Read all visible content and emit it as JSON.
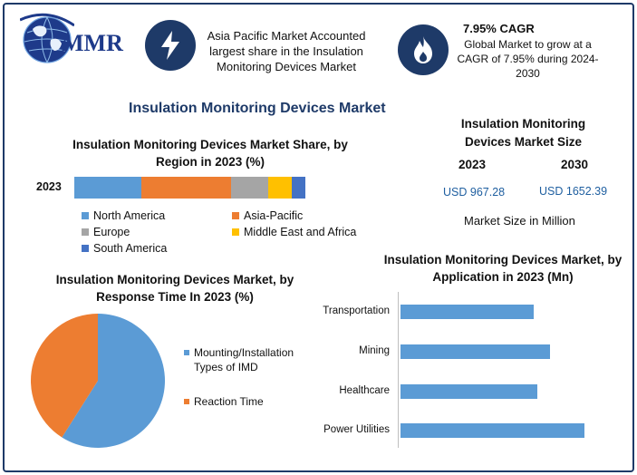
{
  "colors": {
    "primary_dark": "#1e3a68",
    "north_america": "#5b9bd5",
    "asia_pacific": "#ed7d31",
    "europe": "#a5a5a5",
    "middle_east_africa": "#ffc000",
    "south_america": "#4472c4",
    "value_blue": "#1f5fa0"
  },
  "header": {
    "logo_text": "MMR",
    "box1": {
      "icon": "lightning-bolt-icon",
      "text": "Asia Pacific Market Accounted largest share in the Insulation Monitoring Devices Market"
    },
    "box2": {
      "icon": "flame-icon",
      "title": "7.95% CAGR",
      "text": "Global Market to grow at a CAGR of 7.95% during 2024-2030"
    }
  },
  "main_title": "Insulation Monitoring Devices Market",
  "market_size": {
    "title": "Insulation Monitoring Devices Market Size",
    "year_a": "2023",
    "year_b": "2030",
    "value_a": "USD 967.28",
    "value_b": "USD 1652.39",
    "note": "Market Size in Million"
  },
  "chart_data": [
    {
      "type": "bar",
      "orientation": "horizontal-stacked",
      "title": "Insulation Monitoring Devices Market Share, by Region in 2023 (%)",
      "categories": [
        "2023"
      ],
      "series": [
        {
          "name": "North America",
          "values": [
            29
          ],
          "color": "#5b9bd5"
        },
        {
          "name": "Asia-Pacific",
          "values": [
            39
          ],
          "color": "#ed7d31"
        },
        {
          "name": "Europe",
          "values": [
            16
          ],
          "color": "#a5a5a5"
        },
        {
          "name": "Middle East and Africa",
          "values": [
            10
          ],
          "color": "#ffc000"
        },
        {
          "name": "South America",
          "values": [
            6
          ],
          "color": "#4472c4"
        }
      ],
      "legend_position": "bottom"
    },
    {
      "type": "pie",
      "title": "Insulation Monitoring Devices Market, by Response Time In 2023 (%)",
      "labels": [
        "Mounting/Installation Types of IMD",
        "Reaction Time"
      ],
      "values": [
        59,
        41
      ],
      "colors": [
        "#5b9bd5",
        "#ed7d31"
      ],
      "legend_position": "right"
    },
    {
      "type": "bar",
      "orientation": "horizontal",
      "title": "Insulation Monitoring Devices Market, by Application in 2023 (Mn)",
      "categories": [
        "Transportation",
        "Mining",
        "Healthcare",
        "Power Utilities"
      ],
      "values": [
        147,
        165,
        151,
        203
      ],
      "color": "#5b9bd5",
      "grid": false
    }
  ]
}
